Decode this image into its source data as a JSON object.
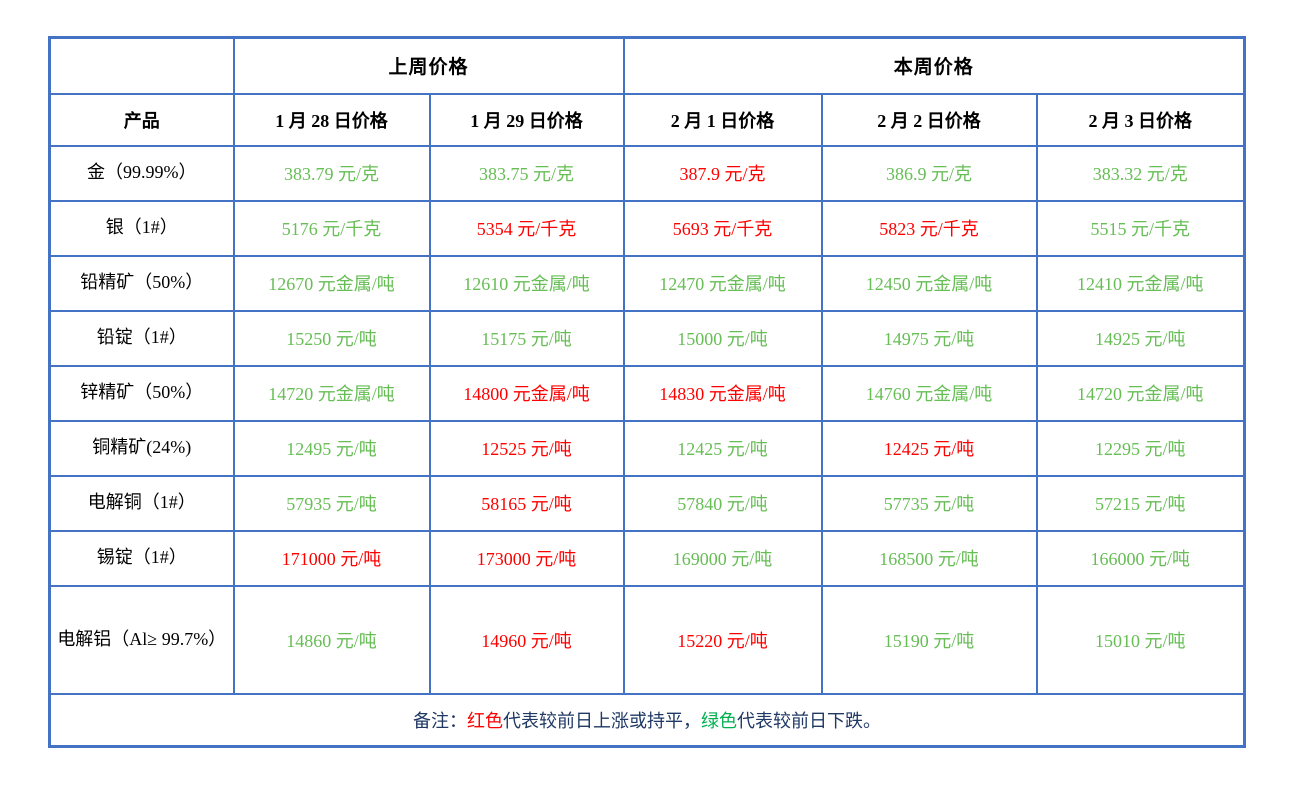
{
  "colors": {
    "up_red": "#FF0000",
    "down_green": "#66BE55",
    "border_blue": "#4472C4",
    "note_green": "#00B050",
    "note_text": "#1F3864"
  },
  "table": {
    "header": {
      "corner_blank": "",
      "last_week": "上周价格",
      "this_week": "本周价格"
    },
    "columns": [
      "产品",
      "1 月 28 日价格",
      "1 月 29 日价格",
      "2 月 1 日价格",
      "2 月 2 日价格",
      "2 月 3 日价格"
    ],
    "rows": [
      {
        "product": "金（99.99%）",
        "values": [
          {
            "text": "383.79 元/克",
            "trend": "down"
          },
          {
            "text": "383.75 元/克",
            "trend": "down"
          },
          {
            "text": "387.9 元/克",
            "trend": "up"
          },
          {
            "text": "386.9 元/克",
            "trend": "down"
          },
          {
            "text": "383.32 元/克",
            "trend": "down"
          }
        ]
      },
      {
        "product": "银（1#）",
        "values": [
          {
            "text": "5176 元/千克",
            "trend": "down"
          },
          {
            "text": "5354 元/千克",
            "trend": "up"
          },
          {
            "text": "5693 元/千克",
            "trend": "up"
          },
          {
            "text": "5823 元/千克",
            "trend": "up"
          },
          {
            "text": "5515 元/千克",
            "trend": "down"
          }
        ]
      },
      {
        "product": "铅精矿（50%）",
        "values": [
          {
            "text": "12670 元金属/吨",
            "trend": "down"
          },
          {
            "text": "12610 元金属/吨",
            "trend": "down"
          },
          {
            "text": "12470 元金属/吨",
            "trend": "down"
          },
          {
            "text": "12450 元金属/吨",
            "trend": "down"
          },
          {
            "text": "12410 元金属/吨",
            "trend": "down"
          }
        ]
      },
      {
        "product": "铅锭（1#）",
        "values": [
          {
            "text": "15250 元/吨",
            "trend": "down"
          },
          {
            "text": "15175 元/吨",
            "trend": "down"
          },
          {
            "text": "15000 元/吨",
            "trend": "down"
          },
          {
            "text": "14975 元/吨",
            "trend": "down"
          },
          {
            "text": "14925 元/吨",
            "trend": "down"
          }
        ]
      },
      {
        "product": "锌精矿（50%）",
        "values": [
          {
            "text": "14720 元金属/吨",
            "trend": "down"
          },
          {
            "text": "14800 元金属/吨",
            "trend": "up"
          },
          {
            "text": "14830 元金属/吨",
            "trend": "up"
          },
          {
            "text": "14760 元金属/吨",
            "trend": "down"
          },
          {
            "text": "14720 元金属/吨",
            "trend": "down"
          }
        ]
      },
      {
        "product": "铜精矿(24%)",
        "values": [
          {
            "text": "12495 元/吨",
            "trend": "down"
          },
          {
            "text": "12525 元/吨",
            "trend": "up"
          },
          {
            "text": "12425 元/吨",
            "trend": "down"
          },
          {
            "text": "12425 元/吨",
            "trend": "up"
          },
          {
            "text": "12295 元/吨",
            "trend": "down"
          }
        ]
      },
      {
        "product": "电解铜（1#）",
        "values": [
          {
            "text": "57935 元/吨",
            "trend": "down"
          },
          {
            "text": "58165 元/吨",
            "trend": "up"
          },
          {
            "text": "57840 元/吨",
            "trend": "down"
          },
          {
            "text": "57735 元/吨",
            "trend": "down"
          },
          {
            "text": "57215 元/吨",
            "trend": "down"
          }
        ]
      },
      {
        "product": "锡锭（1#）",
        "values": [
          {
            "text": "171000 元/吨",
            "trend": "up"
          },
          {
            "text": "173000 元/吨",
            "trend": "up"
          },
          {
            "text": "169000 元/吨",
            "trend": "down"
          },
          {
            "text": "168500 元/吨",
            "trend": "down"
          },
          {
            "text": "166000 元/吨",
            "trend": "down"
          }
        ]
      },
      {
        "product": "电解铝（Al≥ 99.7%）",
        "tall": true,
        "values": [
          {
            "text": "14860 元/吨",
            "trend": "down"
          },
          {
            "text": "14960 元/吨",
            "trend": "up"
          },
          {
            "text": "15220 元/吨",
            "trend": "up"
          },
          {
            "text": "15190 元/吨",
            "trend": "down"
          },
          {
            "text": "15010 元/吨",
            "trend": "down"
          }
        ]
      }
    ],
    "note": {
      "prefix": "备注：",
      "red_label": "红色",
      "red_desc": "代表较前日上涨或持平，",
      "green_label": "绿色",
      "green_desc": "代表较前日下跌。"
    }
  }
}
